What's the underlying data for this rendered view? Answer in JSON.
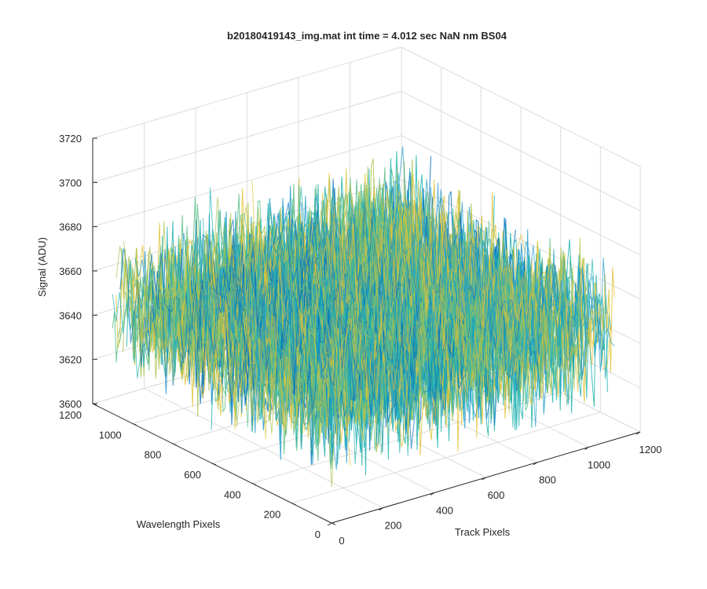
{
  "chart_data": {
    "type": "surface3d",
    "title": "b20180419143_img.mat int time = 4.012 sec  NaN nm BS04",
    "xlabel": "Track Pixels",
    "ylabel": "Wavelength Pixels",
    "zlabel": "Signal (ADU)",
    "xlim": [
      0,
      1200
    ],
    "ylim": [
      0,
      1200
    ],
    "zlim": [
      3600,
      3720
    ],
    "xticks": [
      "0",
      "200",
      "400",
      "600",
      "800",
      "1000",
      "1200"
    ],
    "yticks": [
      "0",
      "200",
      "400",
      "600",
      "800",
      "1000",
      "1200"
    ],
    "zticks": [
      "3600",
      "3620",
      "3640",
      "3660",
      "3680",
      "3700",
      "3720"
    ],
    "data_extent": {
      "x": [
        0,
        1100
      ],
      "y": [
        0,
        1100
      ]
    },
    "signal_mean": 3650,
    "signal_noise_range": [
      3615,
      3705
    ],
    "grid": true,
    "view": "3d-default",
    "colormap": [
      "#0072BD",
      "#1E9BC9",
      "#21B3B0",
      "#5DBE8A",
      "#A9C24F",
      "#E0C33B"
    ]
  }
}
